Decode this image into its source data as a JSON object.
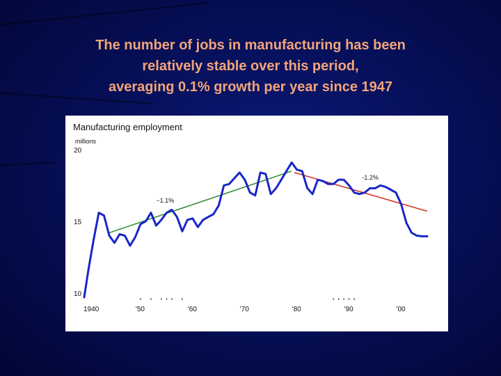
{
  "slide": {
    "title_lines": [
      "The number of jobs in manufacturing has been",
      "relatively stable over this period,",
      "averaging 0.1% growth per year since 1947"
    ]
  },
  "colors": {
    "title": "#f4a47a",
    "series": "#1a25c8",
    "trend_up": "#2e8b2e",
    "trend_down": "#d03020"
  },
  "chart_data": {
    "type": "line",
    "title": "Manufacturing employment",
    "ylabel": "millions",
    "xlabel": "",
    "xlim": [
      1940,
      2005
    ],
    "ylim": [
      10,
      20
    ],
    "y_ticks": [
      {
        "value": 20,
        "label": "20"
      },
      {
        "value": 15,
        "label": "15"
      },
      {
        "value": 10,
        "label": "10"
      }
    ],
    "x_ticks": [
      {
        "value": 1940,
        "label": "1940"
      },
      {
        "value": 1950,
        "label": "'50"
      },
      {
        "value": 1960,
        "label": "'60"
      },
      {
        "value": 1970,
        "label": "'70"
      },
      {
        "value": 1980,
        "label": "'80"
      },
      {
        "value": 1990,
        "label": "'90"
      },
      {
        "value": 2000,
        "label": "'00"
      }
    ],
    "series": [
      {
        "values": [
          [
            1939.2,
            10.0
          ],
          [
            1940.0,
            11.9
          ],
          [
            1941.0,
            14.0
          ],
          [
            1942.0,
            15.9
          ],
          [
            1943.0,
            15.7
          ],
          [
            1944.0,
            14.3
          ],
          [
            1945.0,
            13.8
          ],
          [
            1946.0,
            14.4
          ],
          [
            1947.0,
            14.3
          ],
          [
            1948.0,
            13.6
          ],
          [
            1949.0,
            14.2
          ],
          [
            1950.0,
            15.1
          ],
          [
            1951.0,
            15.3
          ],
          [
            1952.0,
            15.9
          ],
          [
            1953.0,
            15.0
          ],
          [
            1954.0,
            15.4
          ],
          [
            1955.0,
            15.9
          ],
          [
            1956.0,
            16.1
          ],
          [
            1957.0,
            15.6
          ],
          [
            1958.0,
            14.6
          ],
          [
            1959.0,
            15.4
          ],
          [
            1960.0,
            15.5
          ],
          [
            1961.0,
            14.9
          ],
          [
            1962.0,
            15.4
          ],
          [
            1963.0,
            15.6
          ],
          [
            1964.0,
            15.8
          ],
          [
            1965.0,
            16.4
          ],
          [
            1966.0,
            17.8
          ],
          [
            1967.0,
            17.9
          ],
          [
            1968.0,
            18.3
          ],
          [
            1969.0,
            18.7
          ],
          [
            1970.0,
            18.2
          ],
          [
            1971.0,
            17.3
          ],
          [
            1972.0,
            17.1
          ],
          [
            1973.0,
            18.7
          ],
          [
            1974.0,
            18.6
          ],
          [
            1975.0,
            17.2
          ],
          [
            1976.0,
            17.6
          ],
          [
            1977.0,
            18.2
          ],
          [
            1978.0,
            18.8
          ],
          [
            1979.0,
            19.4
          ],
          [
            1980.0,
            18.9
          ],
          [
            1981.0,
            18.8
          ],
          [
            1982.0,
            17.6
          ],
          [
            1983.0,
            17.2
          ],
          [
            1984.0,
            18.2
          ],
          [
            1985.0,
            18.1
          ],
          [
            1986.0,
            17.9
          ],
          [
            1987.0,
            17.9
          ],
          [
            1988.0,
            18.2
          ],
          [
            1989.0,
            18.2
          ],
          [
            1990.0,
            17.8
          ],
          [
            1991.0,
            17.3
          ],
          [
            1992.0,
            17.2
          ],
          [
            1993.0,
            17.3
          ],
          [
            1994.0,
            17.6
          ],
          [
            1995.0,
            17.6
          ],
          [
            1996.0,
            17.8
          ],
          [
            1997.0,
            17.7
          ],
          [
            1998.0,
            17.5
          ],
          [
            1999.0,
            17.3
          ],
          [
            2000.0,
            16.5
          ],
          [
            2001.0,
            15.2
          ],
          [
            2002.0,
            14.5
          ],
          [
            2003.0,
            14.3
          ],
          [
            2004.0,
            14.25
          ],
          [
            2005.0,
            14.25
          ]
        ]
      }
    ],
    "trend_lines": [
      {
        "label": "~1.1%",
        "from": [
          1944.0,
          14.5
        ],
        "to": [
          1979.0,
          18.8
        ],
        "color": "#2e8b2e",
        "label_at": [
          1953.0,
          16.6
        ]
      },
      {
        "label": "-1.2%",
        "from": [
          1979.5,
          18.7
        ],
        "to": [
          2005.0,
          16.0
        ],
        "color": "#d03020",
        "label_at": [
          1992.5,
          18.2
        ]
      }
    ],
    "grid": false,
    "legend": "none"
  }
}
